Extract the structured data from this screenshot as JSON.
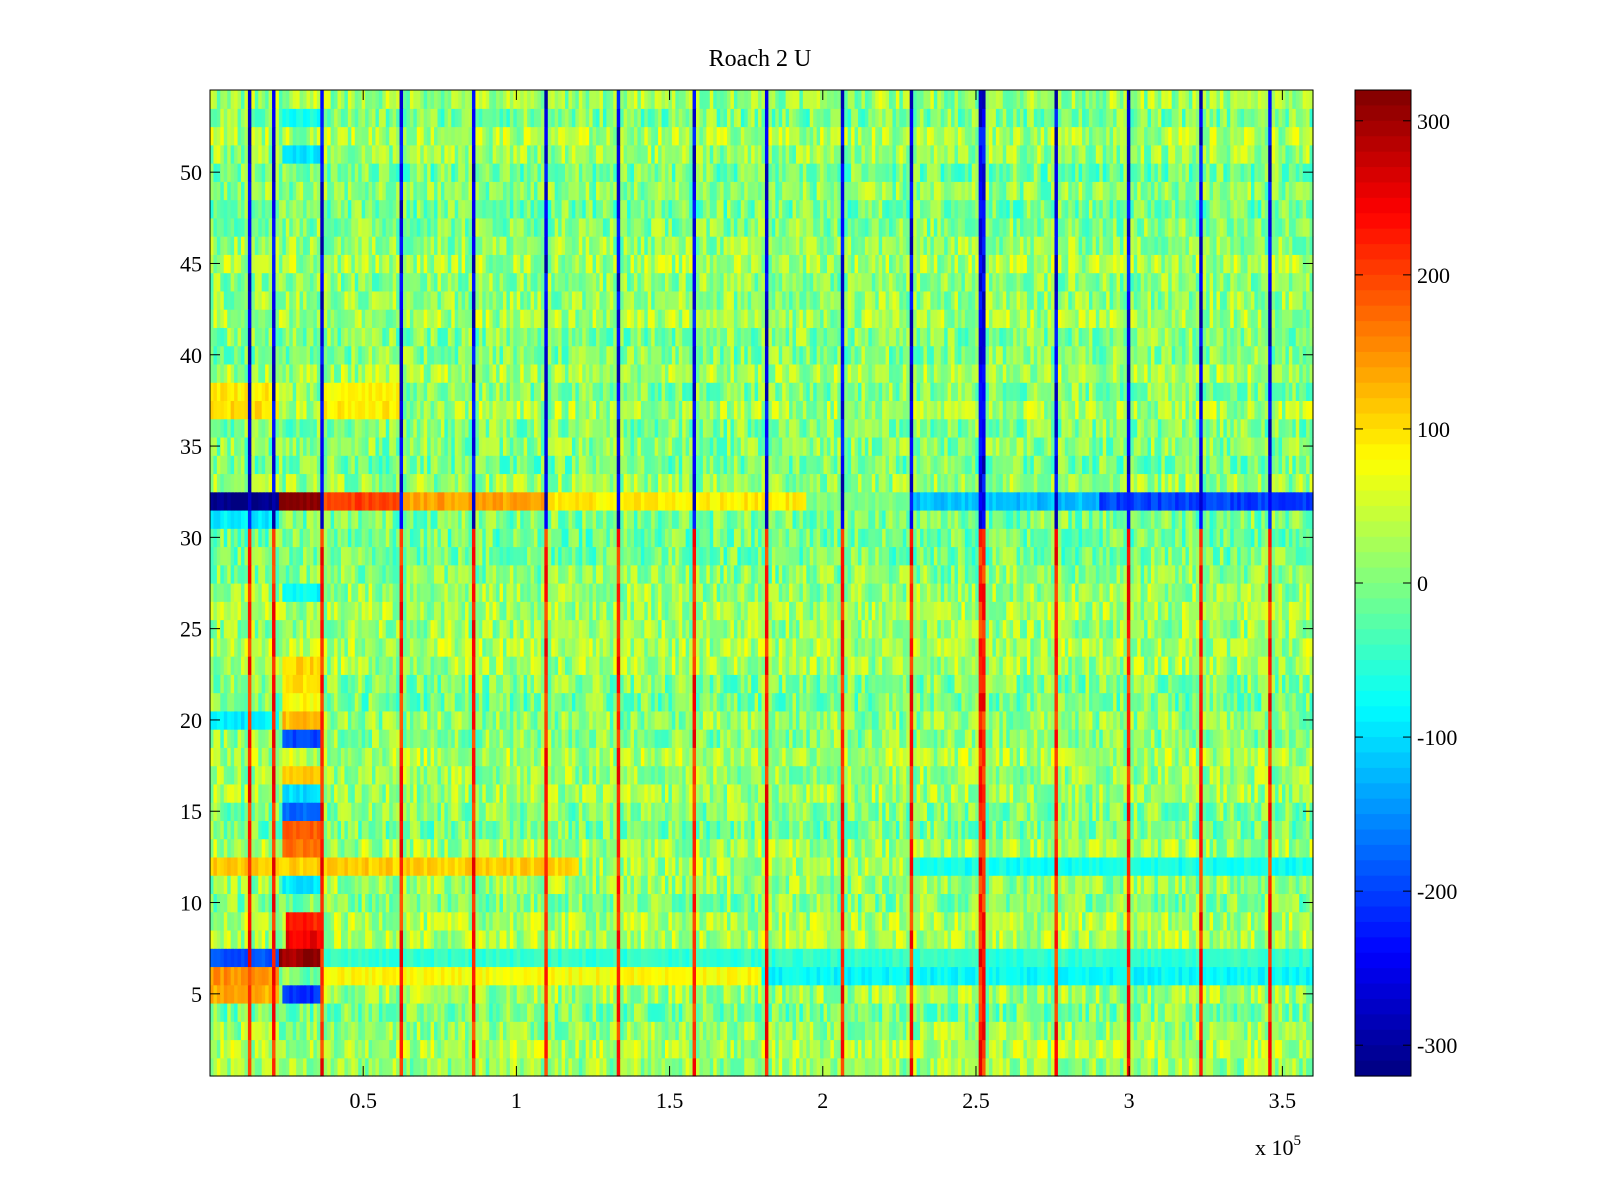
{
  "chart_data": {
    "type": "heatmap",
    "title": "Roach 2 U",
    "xlabel": "",
    "ylabel": "",
    "x_exponent_label": "x 10",
    "x_exponent_power": "5",
    "xlim": [
      0,
      3.6
    ],
    "ylim": [
      0.5,
      54.5
    ],
    "x_ticks": [
      0.5,
      1,
      1.5,
      2,
      2.5,
      3,
      3.5
    ],
    "x_tick_labels": [
      "0.5",
      "1",
      "1.5",
      "2",
      "2.5",
      "3",
      "3.5"
    ],
    "y_ticks": [
      5,
      10,
      15,
      20,
      25,
      30,
      35,
      40,
      45,
      50
    ],
    "y_tick_labels": [
      "5",
      "10",
      "15",
      "20",
      "25",
      "30",
      "35",
      "40",
      "45",
      "50"
    ],
    "colormap": "jet",
    "clim": [
      -320,
      320
    ],
    "colorbar_ticks": [
      300,
      200,
      100,
      0,
      -100,
      -200,
      -300
    ],
    "colorbar_tick_labels": [
      "300",
      "200",
      "100",
      "0",
      "-100",
      "-200",
      "-300"
    ],
    "rows": 54,
    "baseline_value": 10,
    "noise_amplitude": 55,
    "periodic_column_spikes_x": [
      0.13,
      0.21,
      0.37,
      0.62,
      0.86,
      1.1,
      1.33,
      1.58,
      1.82,
      2.06,
      2.29,
      2.52,
      2.76,
      3.0,
      3.23,
      3.46
    ],
    "spike_values_upper_rows": -300,
    "spike_values_lower_rows": 260,
    "row_segments": [
      {
        "row": 32,
        "x_start": 0.0,
        "x_end": 0.23,
        "value": -320
      },
      {
        "row": 32,
        "x_start": 0.23,
        "x_end": 0.37,
        "value": 320
      },
      {
        "row": 32,
        "x_start": 0.37,
        "x_end": 0.62,
        "value": 200
      },
      {
        "row": 32,
        "x_start": 0.62,
        "x_end": 1.1,
        "value": 140
      },
      {
        "row": 32,
        "x_start": 1.1,
        "x_end": 1.95,
        "value": 90
      },
      {
        "row": 32,
        "x_start": 1.95,
        "x_end": 2.29,
        "value": 0
      },
      {
        "row": 32,
        "x_start": 2.29,
        "x_end": 2.9,
        "value": -120
      },
      {
        "row": 32,
        "x_start": 2.9,
        "x_end": 3.6,
        "value": -200
      },
      {
        "row": 7,
        "x_start": 0.0,
        "x_end": 0.23,
        "value": -190
      },
      {
        "row": 7,
        "x_start": 0.23,
        "x_end": 0.37,
        "value": 300
      },
      {
        "row": 7,
        "x_start": 0.37,
        "x_end": 3.6,
        "value": -50
      },
      {
        "row": 8,
        "x_start": 0.25,
        "x_end": 0.36,
        "value": 250
      },
      {
        "row": 9,
        "x_start": 0.25,
        "x_end": 0.36,
        "value": 220
      },
      {
        "row": 6,
        "x_start": 0.0,
        "x_end": 0.23,
        "value": 150
      },
      {
        "row": 6,
        "x_start": 0.37,
        "x_end": 1.8,
        "value": 80
      },
      {
        "row": 6,
        "x_start": 1.8,
        "x_end": 3.6,
        "value": -80
      },
      {
        "row": 5,
        "x_start": 0.0,
        "x_end": 0.23,
        "value": 130
      },
      {
        "row": 5,
        "x_start": 0.24,
        "x_end": 0.36,
        "value": -210
      },
      {
        "row": 11,
        "x_start": 0.24,
        "x_end": 0.36,
        "value": -90
      },
      {
        "row": 12,
        "x_start": 0.0,
        "x_end": 1.2,
        "value": 110
      },
      {
        "row": 12,
        "x_start": 2.3,
        "x_end": 3.6,
        "value": -70
      },
      {
        "row": 13,
        "x_start": 0.24,
        "x_end": 0.36,
        "value": 170
      },
      {
        "row": 14,
        "x_start": 0.24,
        "x_end": 0.36,
        "value": 180
      },
      {
        "row": 15,
        "x_start": 0.24,
        "x_end": 0.36,
        "value": -180
      },
      {
        "row": 16,
        "x_start": 0.24,
        "x_end": 0.36,
        "value": -100
      },
      {
        "row": 17,
        "x_start": 0.24,
        "x_end": 0.36,
        "value": 110
      },
      {
        "row": 19,
        "x_start": 0.24,
        "x_end": 0.36,
        "value": -200
      },
      {
        "row": 20,
        "x_start": 0.24,
        "x_end": 0.36,
        "value": 120
      },
      {
        "row": 20,
        "x_start": 0.0,
        "x_end": 0.22,
        "value": -90
      },
      {
        "row": 21,
        "x_start": 0.24,
        "x_end": 0.36,
        "value": 80
      },
      {
        "row": 22,
        "x_start": 0.24,
        "x_end": 0.36,
        "value": 100
      },
      {
        "row": 23,
        "x_start": 0.24,
        "x_end": 0.36,
        "value": 110
      },
      {
        "row": 27,
        "x_start": 0.24,
        "x_end": 0.36,
        "value": -80
      },
      {
        "row": 31,
        "x_start": 0.0,
        "x_end": 0.22,
        "value": -90
      },
      {
        "row": 37,
        "x_start": 0.0,
        "x_end": 0.22,
        "value": 100
      },
      {
        "row": 38,
        "x_start": 0.0,
        "x_end": 0.22,
        "value": 90
      },
      {
        "row": 37,
        "x_start": 0.37,
        "x_end": 0.62,
        "value": 90
      },
      {
        "row": 38,
        "x_start": 0.37,
        "x_end": 0.62,
        "value": 80
      },
      {
        "row": 51,
        "x_start": 0.24,
        "x_end": 0.36,
        "value": -90
      },
      {
        "row": 53,
        "x_start": 0.24,
        "x_end": 0.36,
        "value": -70
      }
    ]
  }
}
